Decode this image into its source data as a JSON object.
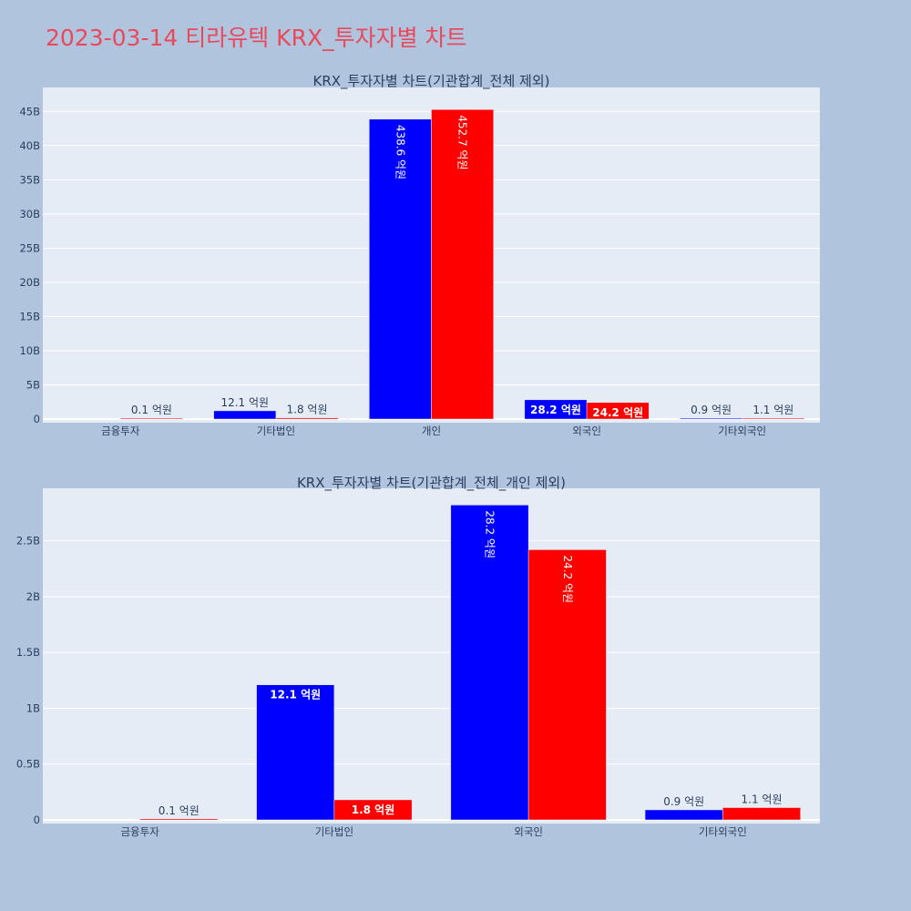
{
  "page_title": "2023-03-14 티라유텍 KRX_투자자별 차트",
  "colors": {
    "buy": "#0000ff",
    "sell": "#ff0000",
    "plot_bg": "#e5ecf6",
    "page_bg": "#b0c4de",
    "title": "#e8495c"
  },
  "chart_data": [
    {
      "type": "bar",
      "title": "KRX_투자자별 차트(기관합계_전체 제외)",
      "categories": [
        "금융투자",
        "기타법인",
        "개인",
        "외국인",
        "기타외국인"
      ],
      "series": [
        {
          "color": "#0000ff",
          "values": [
            0.0,
            1.21,
            43.86,
            2.82,
            0.09
          ],
          "labels": [
            "",
            "12.1 억원",
            "438.6 억원",
            "28.2 억원",
            "0.9 억원"
          ]
        },
        {
          "color": "#ff0000",
          "values": [
            0.01,
            0.18,
            45.27,
            2.42,
            0.11
          ],
          "labels": [
            "0.1 억원",
            "1.8 억원",
            "452.7 억원",
            "24.2 억원",
            "1.1 억원"
          ]
        }
      ],
      "yunit": "B",
      "ylim": [
        0,
        48.5
      ],
      "yticks": [
        0,
        5,
        10,
        15,
        20,
        25,
        30,
        35,
        40,
        45
      ],
      "ytick_labels": [
        "0",
        "5B",
        "10B",
        "15B",
        "20B",
        "25B",
        "30B",
        "35B",
        "40B",
        "45B"
      ],
      "grid": true,
      "legend": "none"
    },
    {
      "type": "bar",
      "title": "KRX_투자자별 차트(기관합계_전체_개인 제외)",
      "categories": [
        "금융투자",
        "기타법인",
        "외국인",
        "기타외국인"
      ],
      "series": [
        {
          "color": "#0000ff",
          "values": [
            0.0,
            1.21,
            2.82,
            0.09
          ],
          "labels": [
            "",
            "12.1 억원",
            "28.2 억원",
            "0.9 억원"
          ]
        },
        {
          "color": "#ff0000",
          "values": [
            0.01,
            0.18,
            2.42,
            0.11
          ],
          "labels": [
            "0.1 억원",
            "1.8 억원",
            "24.2 억원",
            "1.1 억원"
          ]
        }
      ],
      "yunit": "B",
      "ylim": [
        0,
        2.97
      ],
      "yticks": [
        0,
        0.5,
        1,
        1.5,
        2,
        2.5
      ],
      "ytick_labels": [
        "0",
        "0.5B",
        "1B",
        "1.5B",
        "2B",
        "2.5B"
      ],
      "grid": true,
      "legend": "none"
    }
  ]
}
